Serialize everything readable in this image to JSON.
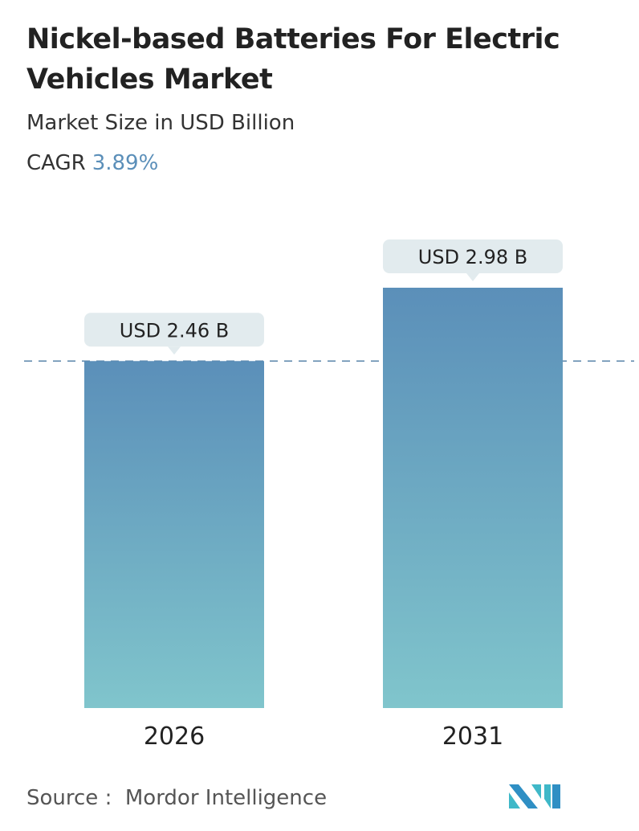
{
  "header": {
    "title": "Nickel-based Batteries For Electric Vehicles Market",
    "subtitle": "Market Size in USD Billion",
    "cagr_label": "CAGR",
    "cagr_value": "3.89%"
  },
  "chart_data": {
    "type": "bar",
    "categories": [
      "2026",
      "2031"
    ],
    "values": [
      2.46,
      2.98
    ],
    "data_labels": [
      "USD 2.46 B",
      "USD 2.98 B"
    ],
    "unit": "USD Billion",
    "ylim": [
      0,
      2.98
    ],
    "grid": false,
    "reference_line": {
      "value": 2.46,
      "style": "dashed"
    },
    "colors": {
      "bar_top": "#5b8fb9",
      "bar_bottom": "#80c5cc",
      "label_bg": "#e2ebee",
      "reference_line": "#5a85aa"
    }
  },
  "footer": {
    "source_label": "Source :",
    "source_value": "Mordor Intelligence",
    "logo_text": "Mordor Intelligence"
  }
}
